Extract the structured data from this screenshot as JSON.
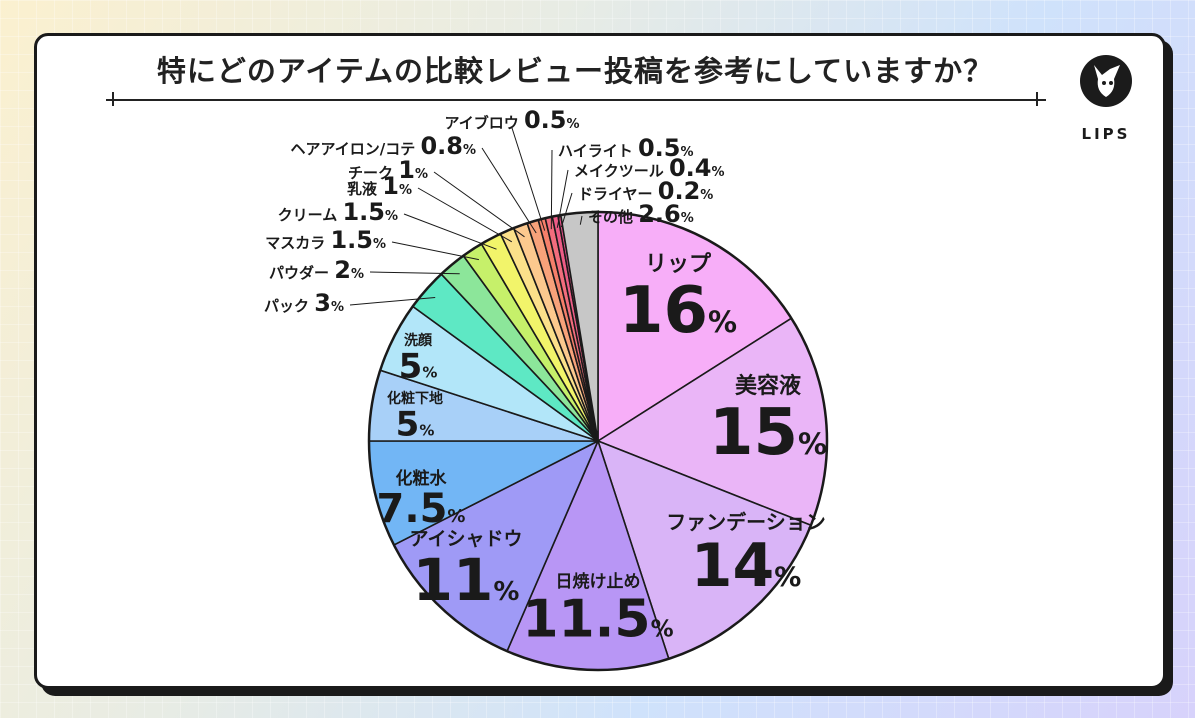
{
  "title": "特にどのアイテムの比較レビュー投稿を参考にしていますか？",
  "brand": {
    "logo_text": "LIPS"
  },
  "chart_data": {
    "type": "pie",
    "title": "特にどのアイテムの比較レビュー投稿を参考にしていますか？",
    "unit": "%",
    "start": "12 o'clock",
    "direction": "clockwise",
    "slices": [
      {
        "label": "リップ",
        "value": 16,
        "value_label": "16",
        "color": "#f7aef8"
      },
      {
        "label": "美容液",
        "value": 15,
        "value_label": "15",
        "color": "#eab5f7"
      },
      {
        "label": "ファンデーション",
        "value": 14,
        "value_label": "14",
        "color": "#d9b4f7"
      },
      {
        "label": "日焼け止め",
        "value": 11.5,
        "value_label": "11.5",
        "color": "#b896f5"
      },
      {
        "label": "アイシャドウ",
        "value": 11,
        "value_label": "11",
        "color": "#9f9af6"
      },
      {
        "label": "化粧水",
        "value": 7.5,
        "value_label": "7.5",
        "color": "#72b6f5"
      },
      {
        "label": "化粧下地",
        "value": 5,
        "value_label": "5",
        "color": "#a8d0f8"
      },
      {
        "label": "洗顔",
        "value": 5,
        "value_label": "5",
        "color": "#b2e6f9"
      },
      {
        "label": "パック",
        "value": 3,
        "value_label": "3",
        "color": "#5ee8c4"
      },
      {
        "label": "パウダー",
        "value": 2,
        "value_label": "2",
        "color": "#8ce69a"
      },
      {
        "label": "マスカラ",
        "value": 1.5,
        "value_label": "1.5",
        "color": "#c6f06a"
      },
      {
        "label": "クリーム",
        "value": 1.5,
        "value_label": "1.5",
        "color": "#f2f46a"
      },
      {
        "label": "乳液",
        "value": 1,
        "value_label": "1",
        "color": "#fbe08a"
      },
      {
        "label": "チーク",
        "value": 1,
        "value_label": "1",
        "color": "#fcc98e"
      },
      {
        "label": "ヘアアイロン/コテ",
        "value": 0.8,
        "value_label": "0.8",
        "color": "#f8a27a"
      },
      {
        "label": "アイブロウ",
        "value": 0.5,
        "value_label": "0.5",
        "color": "#f57f6a"
      },
      {
        "label": "ハイライト",
        "value": 0.5,
        "value_label": "0.5",
        "color": "#f26d7d"
      },
      {
        "label": "メイクツール",
        "value": 0.4,
        "value_label": "0.4",
        "color": "#ed5c86"
      },
      {
        "label": "ドライヤー",
        "value": 0.2,
        "value_label": "0.2",
        "color": "#e8508a"
      },
      {
        "label": "その他",
        "value": 2.6,
        "value_label": "2.6",
        "color": "#c7c7c7"
      }
    ]
  }
}
